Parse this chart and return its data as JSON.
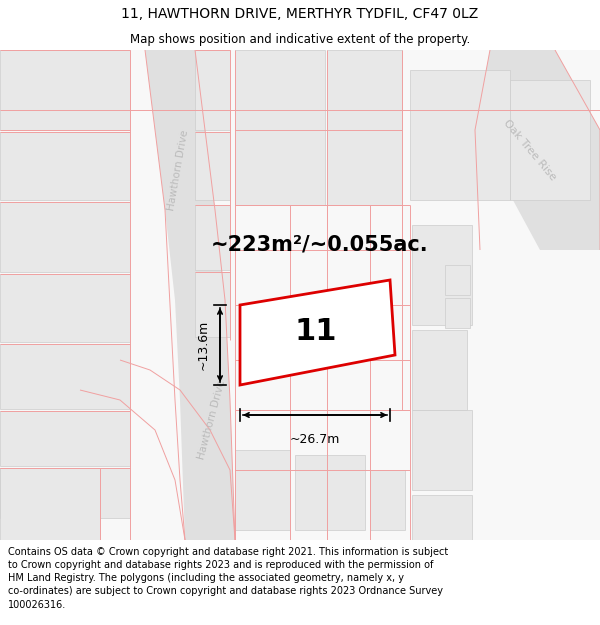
{
  "title": "11, HAWTHORN DRIVE, MERTHYR TYDFIL, CF47 0LZ",
  "subtitle": "Map shows position and indicative extent of the property.",
  "footer": "Contains OS data © Crown copyright and database right 2021. This information is subject\nto Crown copyright and database rights 2023 and is reproduced with the permission of\nHM Land Registry. The polygons (including the associated geometry, namely x, y\nco-ordinates) are subject to Crown copyright and database rights 2023 Ordnance Survey\n100026316.",
  "area_label": "~223m²/~0.055ac.",
  "width_label": "~26.7m",
  "height_label": "~13.6m",
  "house_number": "11",
  "map_bg": "#f8f8f8",
  "building_fill": "#e8e8e8",
  "building_edge": "#cccccc",
  "property_rect_color": "#dd0000",
  "property_fill": "#ffffff",
  "pink": "#f0a0a0",
  "street_color": "#bbbbbb",
  "title_fontsize": 10,
  "subtitle_fontsize": 8.5,
  "footer_fontsize": 7,
  "area_fontsize": 15,
  "dim_fontsize": 9,
  "house_fontsize": 22
}
